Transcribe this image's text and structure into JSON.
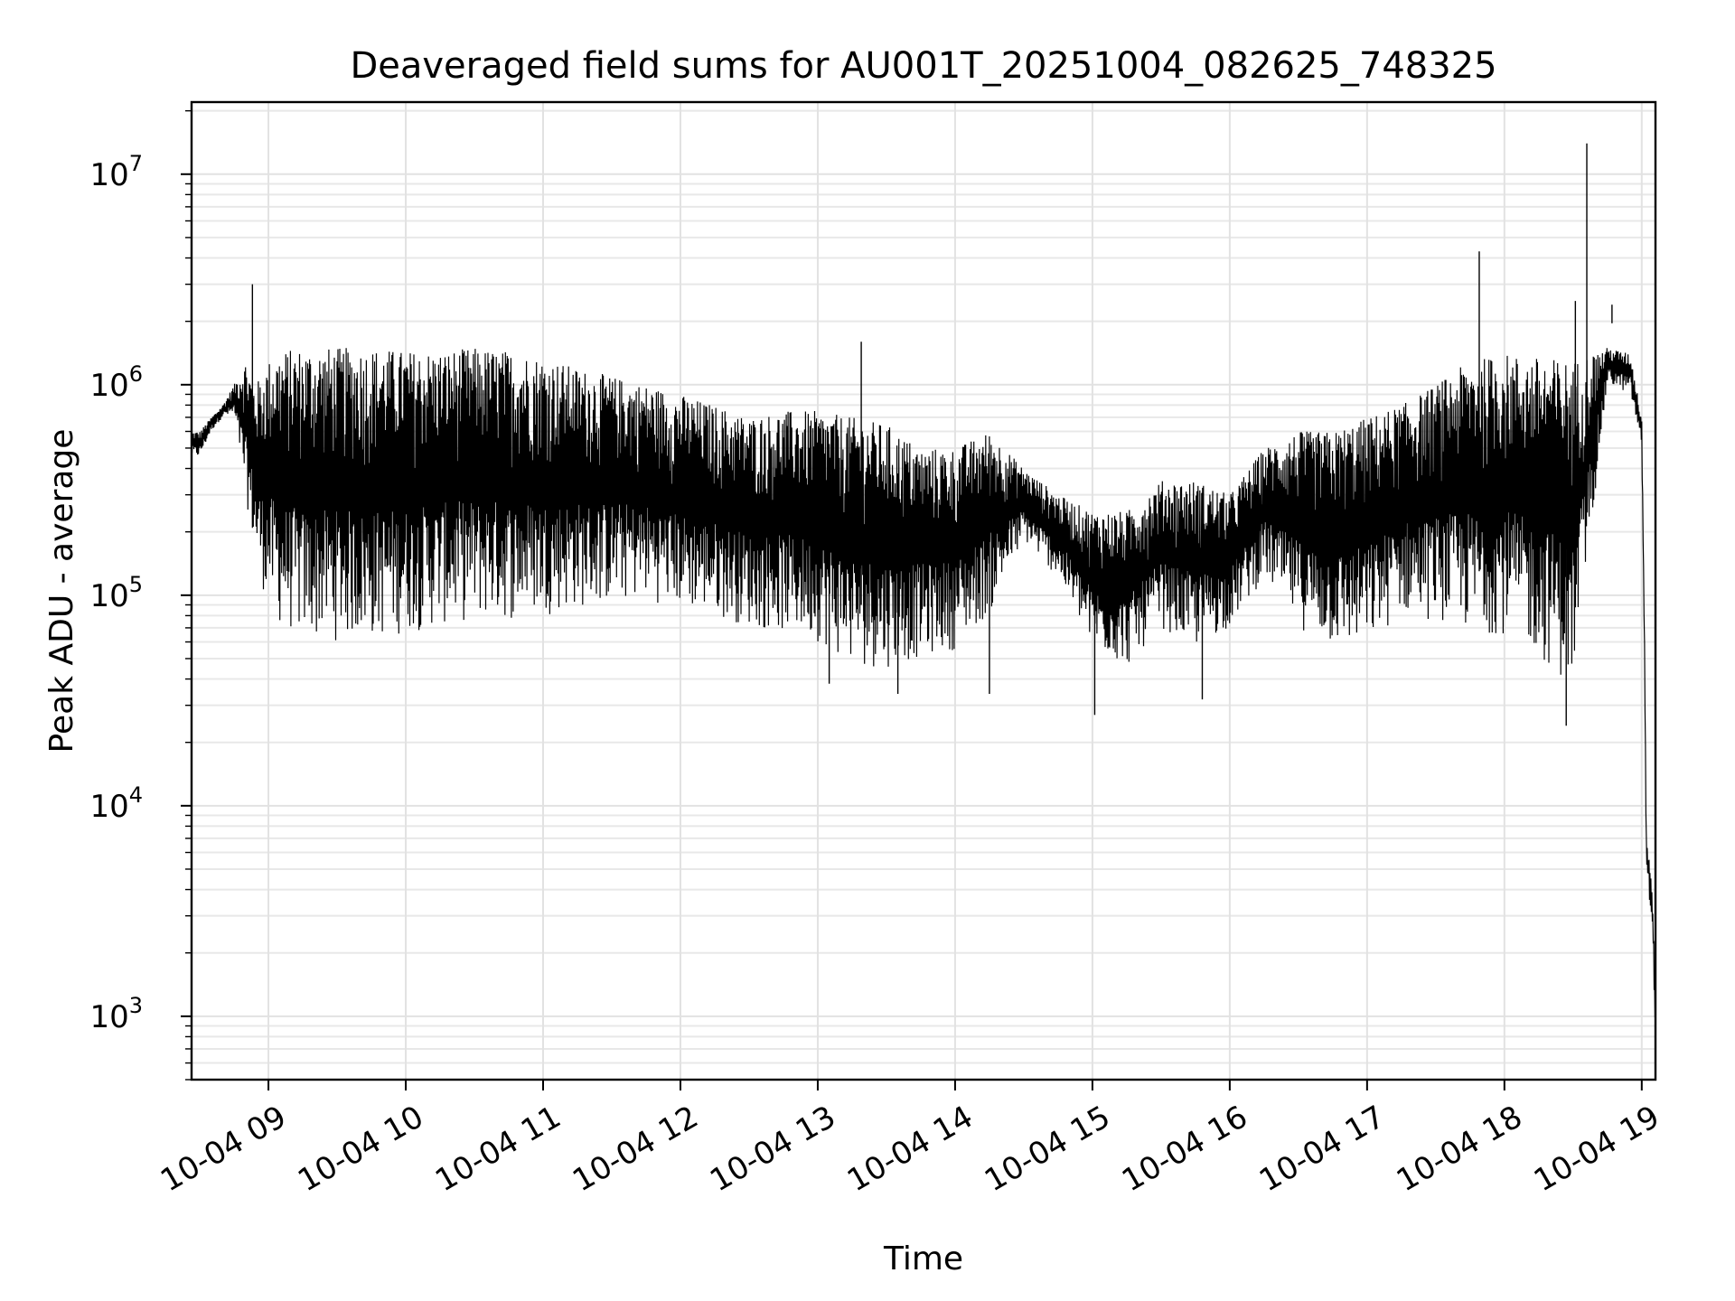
{
  "chart_data": {
    "type": "line",
    "title": "Deaveraged field sums for AU001T_20251004_082625_748325",
    "xlabel": "Time",
    "ylabel": "Peak ADU - average",
    "yscale": "log",
    "ylim": [
      500,
      22000000
    ],
    "xlim": [
      "2025-10-04 08:26:25",
      "2025-10-04 19:06:00"
    ],
    "x_ticks": [
      {
        "value": "2025-10-04 09:00",
        "label": "10-04 09"
      },
      {
        "value": "2025-10-04 10:00",
        "label": "10-04 10"
      },
      {
        "value": "2025-10-04 11:00",
        "label": "10-04 11"
      },
      {
        "value": "2025-10-04 12:00",
        "label": "10-04 12"
      },
      {
        "value": "2025-10-04 13:00",
        "label": "10-04 13"
      },
      {
        "value": "2025-10-04 14:00",
        "label": "10-04 14"
      },
      {
        "value": "2025-10-04 15:00",
        "label": "10-04 15"
      },
      {
        "value": "2025-10-04 16:00",
        "label": "10-04 16"
      },
      {
        "value": "2025-10-04 17:00",
        "label": "10-04 17"
      },
      {
        "value": "2025-10-04 18:00",
        "label": "10-04 18"
      },
      {
        "value": "2025-10-04 19:00",
        "label": "10-04 19"
      }
    ],
    "y_ticks": [
      {
        "value": 1000,
        "base": "10",
        "exp": "3"
      },
      {
        "value": 10000,
        "base": "10",
        "exp": "4"
      },
      {
        "value": 100000,
        "base": "10",
        "exp": "5"
      },
      {
        "value": 1000000,
        "base": "10",
        "exp": "6"
      },
      {
        "value": 10000000,
        "base": "10",
        "exp": "7"
      }
    ],
    "grid": true,
    "line_color": "#000000",
    "series": [
      {
        "x": [
          "2025-10-04 08:26:25",
          "2025-10-04 08:30",
          "2025-10-04 08:35",
          "2025-10-04 08:40",
          "2025-10-04 08:45",
          "2025-10-04 08:50",
          "2025-10-04 08:54",
          "2025-10-04 08:57",
          "2025-10-04 09:00",
          "2025-10-04 09:05",
          "2025-10-04 09:15",
          "2025-10-04 09:30",
          "2025-10-04 09:45",
          "2025-10-04 10:00",
          "2025-10-04 10:15",
          "2025-10-04 10:30",
          "2025-10-04 10:45",
          "2025-10-04 11:00",
          "2025-10-04 11:15",
          "2025-10-04 11:30",
          "2025-10-04 11:45",
          "2025-10-04 12:00",
          "2025-10-04 12:15",
          "2025-10-04 12:30",
          "2025-10-04 12:45",
          "2025-10-04 13:00",
          "2025-10-04 13:15",
          "2025-10-04 13:30",
          "2025-10-04 13:45",
          "2025-10-04 14:00",
          "2025-10-04 14:15",
          "2025-10-04 14:30",
          "2025-10-04 14:45",
          "2025-10-04 15:00",
          "2025-10-04 15:15",
          "2025-10-04 15:30",
          "2025-10-04 15:45",
          "2025-10-04 16:00",
          "2025-10-04 16:15",
          "2025-10-04 16:30",
          "2025-10-04 16:45",
          "2025-10-04 17:00",
          "2025-10-04 17:15",
          "2025-10-04 17:30",
          "2025-10-04 17:45",
          "2025-10-04 18:00",
          "2025-10-04 18:15",
          "2025-10-04 18:30",
          "2025-10-04 18:45",
          "2025-10-04 18:55",
          "2025-10-04 19:00",
          "2025-10-04 19:01",
          "2025-10-04 19:02",
          "2025-10-04 19:03",
          "2025-10-04 19:04",
          "2025-10-04 19:05",
          "2025-10-04 19:06"
        ],
        "upper": [
          600000,
          600000,
          700000,
          800000,
          1000000,
          1300000,
          1000000,
          1100000,
          1300000,
          1450000,
          1500000,
          1500000,
          1500000,
          1450000,
          1450000,
          1500000,
          1450000,
          1350000,
          1200000,
          1100000,
          1000000,
          900000,
          800000,
          700000,
          750000,
          750000,
          700000,
          650000,
          500000,
          500000,
          600000,
          400000,
          300000,
          250000,
          250000,
          350000,
          350000,
          300000,
          500000,
          600000,
          600000,
          700000,
          800000,
          1000000,
          1300000,
          1400000,
          1350000,
          1300000,
          1500000,
          1400000,
          700000,
          100000,
          8000,
          6000,
          5000,
          3000,
          1000
        ],
        "lower": [
          450000,
          450000,
          600000,
          700000,
          700000,
          300000,
          150000,
          110000,
          90000,
          70000,
          60000,
          60000,
          60000,
          65000,
          70000,
          75000,
          75000,
          80000,
          85000,
          90000,
          95000,
          85000,
          80000,
          70000,
          65000,
          60000,
          45000,
          45000,
          50000,
          55000,
          80000,
          180000,
          120000,
          55000,
          45000,
          70000,
          55000,
          70000,
          120000,
          70000,
          55000,
          55000,
          80000,
          75000,
          65000,
          65000,
          50000,
          35000,
          1000000,
          900000,
          500000,
          80000,
          5000,
          4000,
          3000,
          2000,
          700
        ],
        "spikes": [
          {
            "x": "2025-10-04 08:53",
            "y": 3000000
          },
          {
            "x": "2025-10-04 13:19",
            "y": 1600000
          },
          {
            "x": "2025-10-04 17:49",
            "y": 4300000
          },
          {
            "x": "2025-10-04 18:36",
            "y": 14000000
          },
          {
            "x": "2025-10-04 18:31",
            "y": 2500000
          },
          {
            "x": "2025-10-04 18:47",
            "y": 2400000
          }
        ],
        "dips": [
          {
            "x": "2025-10-04 14:15",
            "y": 34000
          },
          {
            "x": "2025-10-04 15:01",
            "y": 27000
          },
          {
            "x": "2025-10-04 15:48",
            "y": 32000
          },
          {
            "x": "2025-10-04 18:27",
            "y": 24000
          },
          {
            "x": "2025-10-04 13:35",
            "y": 34000
          },
          {
            "x": "2025-10-04 13:05",
            "y": 38000
          }
        ]
      }
    ]
  }
}
